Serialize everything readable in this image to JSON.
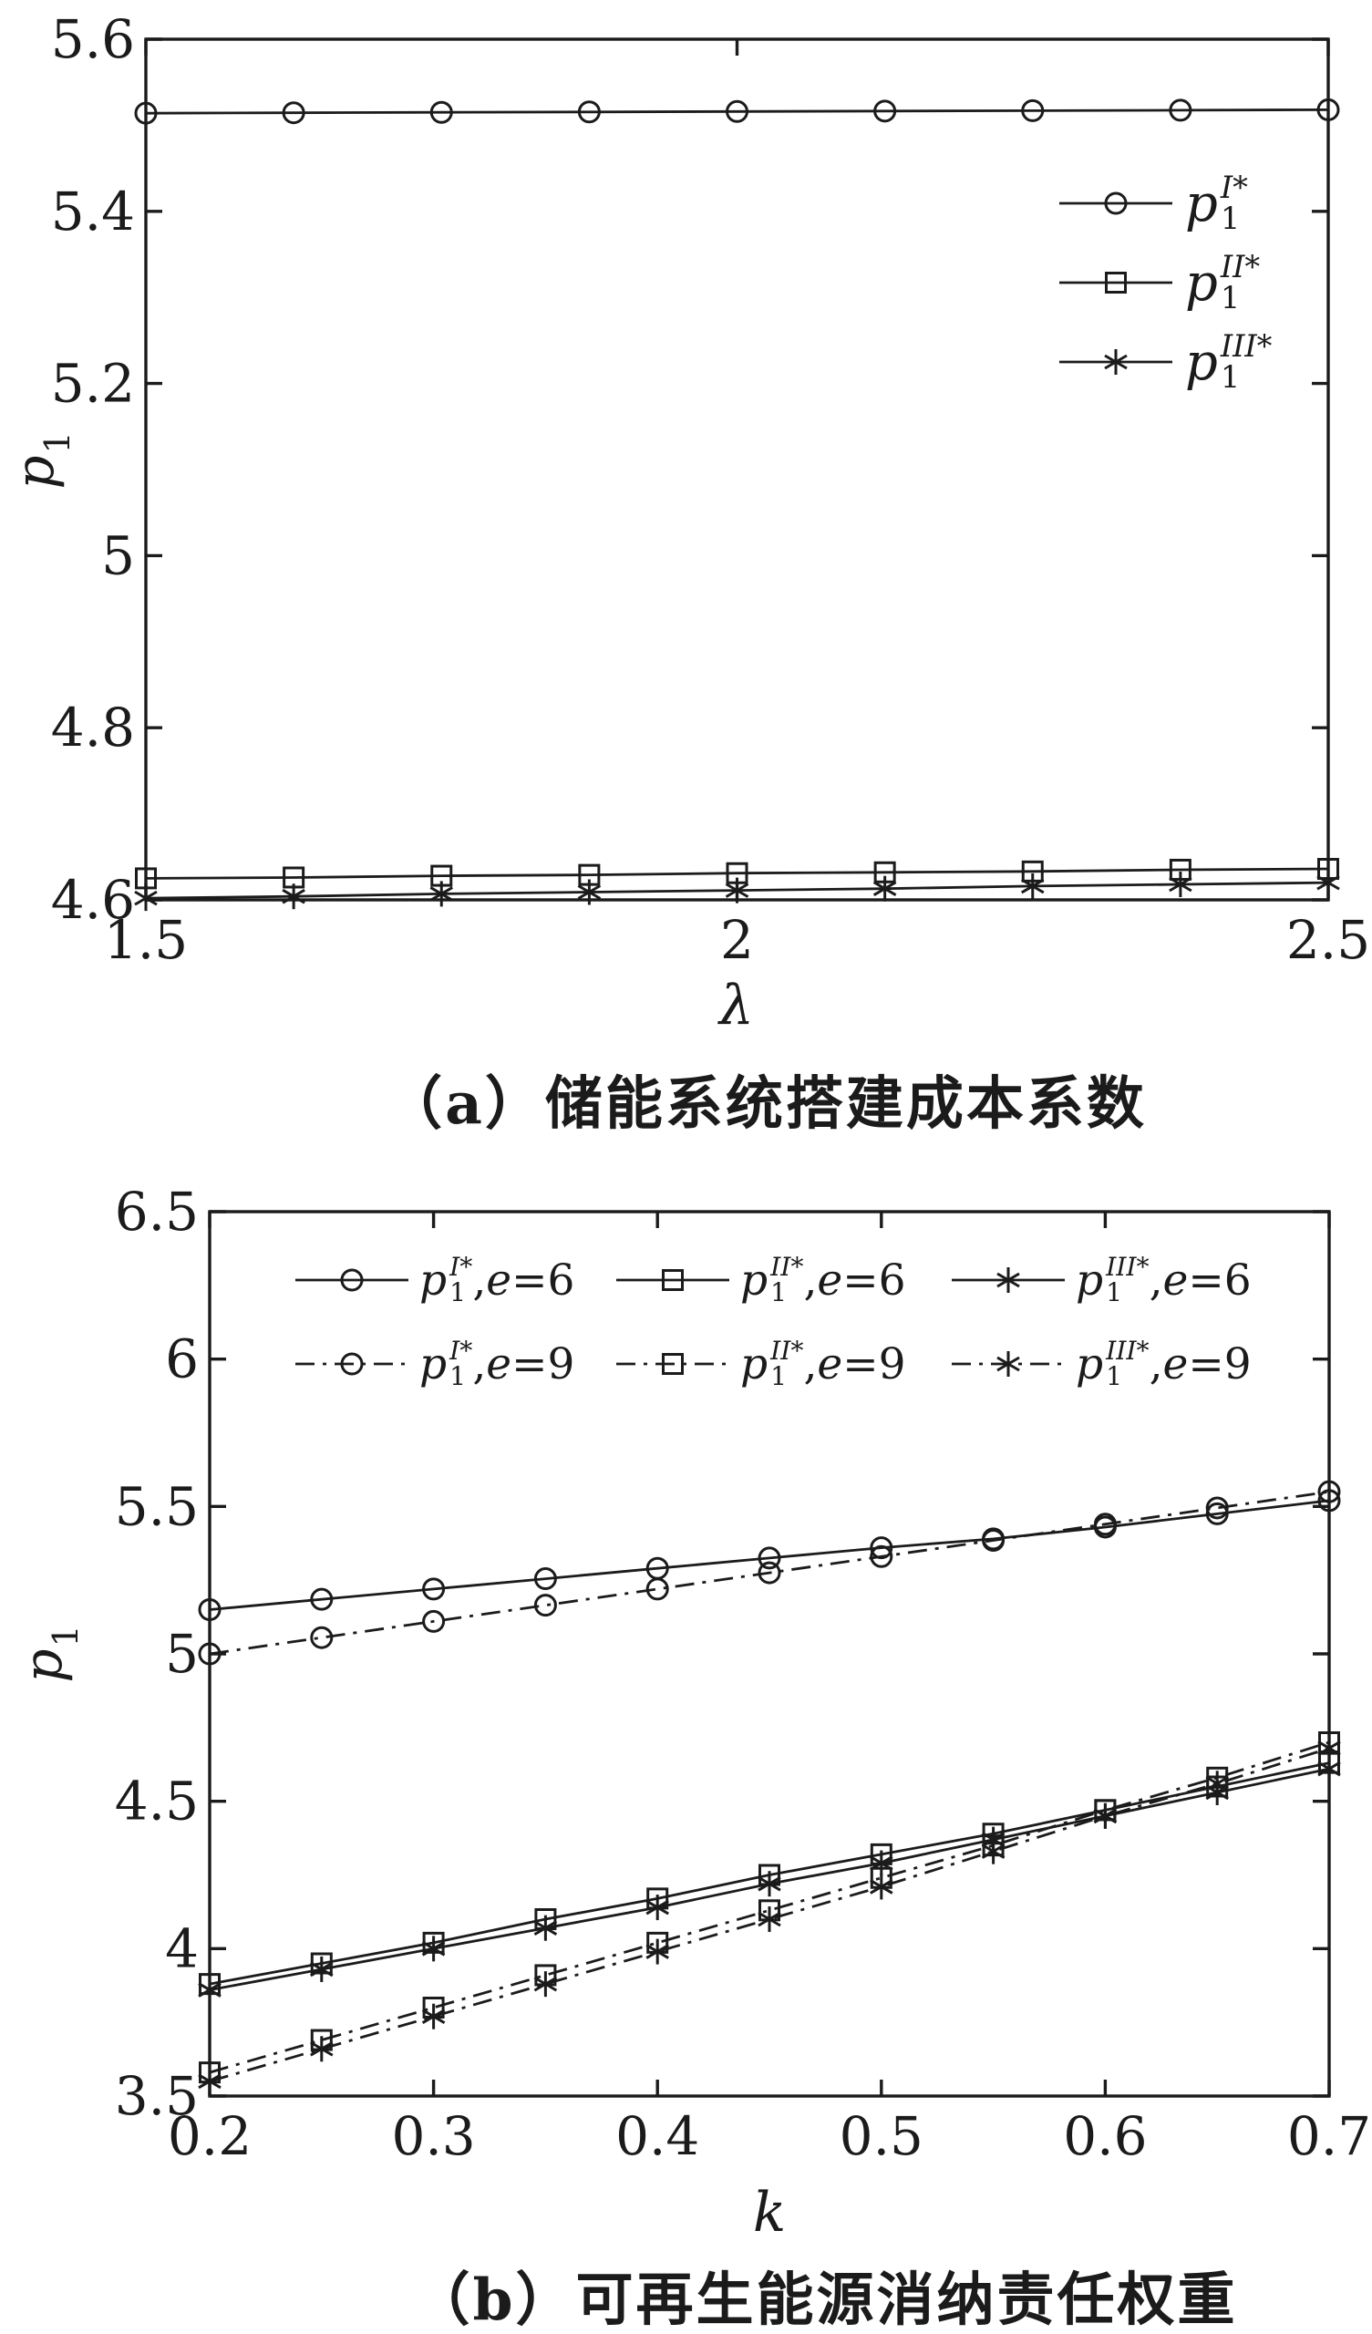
{
  "colors": {
    "ink": "#1b1b1b",
    "background": "#ffffff"
  },
  "chart_data": [
    {
      "id": "a",
      "type": "line",
      "title": "（a）储能系统搭建成本系数",
      "xlabel": "λ",
      "ylabel_base": "p",
      "ylabel_sub": "1",
      "xlim": [
        1.5,
        2.5
      ],
      "ylim": [
        4.6,
        5.6
      ],
      "grid": false,
      "legend_position": "inside upper right",
      "x_ticks": [
        {
          "v": 1.5,
          "label": "1.5"
        },
        {
          "v": 2,
          "label": "2"
        },
        {
          "v": 2.5,
          "label": "2.5"
        }
      ],
      "y_ticks": [
        {
          "v": 4.6,
          "label": "4.6"
        },
        {
          "v": 4.8,
          "label": "4.8"
        },
        {
          "v": 5,
          "label": "5"
        },
        {
          "v": 5.2,
          "label": "5.2"
        },
        {
          "v": 5.4,
          "label": "5.4"
        },
        {
          "v": 5.6,
          "label": "5.6"
        }
      ],
      "x": [
        1.5,
        1.625,
        1.75,
        1.875,
        2,
        2.125,
        2.25,
        2.375,
        2.5
      ],
      "series": [
        {
          "name": "p1-I-star",
          "marker": "circle",
          "line_style": "solid",
          "legend": {
            "base": "p",
            "sup": "I*",
            "sub": "1"
          },
          "values": [
            5.514,
            5.5145,
            5.515,
            5.5155,
            5.516,
            5.5165,
            5.517,
            5.5175,
            5.518
          ]
        },
        {
          "name": "p1-II-star",
          "marker": "square",
          "line_style": "solid",
          "legend": {
            "base": "p",
            "sup": "II*",
            "sub": "1"
          },
          "values": [
            4.625,
            4.626,
            4.628,
            4.629,
            4.631,
            4.632,
            4.633,
            4.635,
            4.636
          ]
        },
        {
          "name": "p1-III-star",
          "marker": "asterisk",
          "line_style": "solid",
          "legend": {
            "base": "p",
            "sup": "III*",
            "sub": "1"
          },
          "values": [
            4.602,
            4.604,
            4.607,
            4.609,
            4.611,
            4.613,
            4.616,
            4.618,
            4.62
          ]
        }
      ]
    },
    {
      "id": "b",
      "type": "line",
      "title": "（b）可再生能源消纳责任权重",
      "xlabel": "k",
      "ylabel_base": "p",
      "ylabel_sub": "1",
      "xlim": [
        0.2,
        0.7
      ],
      "ylim": [
        3.5,
        6.5
      ],
      "grid": false,
      "legend_position": "inside upper area, two rows",
      "x_ticks": [
        {
          "v": 0.2,
          "label": "0.2"
        },
        {
          "v": 0.3,
          "label": "0.3"
        },
        {
          "v": 0.4,
          "label": "0.4"
        },
        {
          "v": 0.5,
          "label": "0.5"
        },
        {
          "v": 0.6,
          "label": "0.6"
        },
        {
          "v": 0.7,
          "label": "0.7"
        }
      ],
      "y_ticks": [
        {
          "v": 3.5,
          "label": "3.5"
        },
        {
          "v": 4,
          "label": "4"
        },
        {
          "v": 4.5,
          "label": "4.5"
        },
        {
          "v": 5,
          "label": "5"
        },
        {
          "v": 5.5,
          "label": "5.5"
        },
        {
          "v": 6,
          "label": "6"
        },
        {
          "v": 6.5,
          "label": "6.5"
        }
      ],
      "x": [
        0.2,
        0.25,
        0.3,
        0.35,
        0.4,
        0.45,
        0.5,
        0.55,
        0.6,
        0.65,
        0.7
      ],
      "series": [
        {
          "name": "p1-I-star-e6",
          "marker": "circle",
          "line_style": "solid",
          "legend": {
            "base": "p",
            "sup": "I*",
            "sub": "1",
            "comma": ",",
            "var": "e",
            "val": "=6"
          },
          "values": [
            5.15,
            5.185,
            5.22,
            5.255,
            5.29,
            5.325,
            5.36,
            5.39,
            5.43,
            5.475,
            5.52
          ]
        },
        {
          "name": "p1-II-star-e6",
          "marker": "square",
          "line_style": "solid",
          "legend": {
            "base": "p",
            "sup": "II*",
            "sub": "1",
            "comma": ",",
            "var": "e",
            "val": "=6"
          },
          "values": [
            3.88,
            3.95,
            4.02,
            4.1,
            4.17,
            4.25,
            4.32,
            4.39,
            4.47,
            4.55,
            4.63
          ]
        },
        {
          "name": "p1-III-star-e6",
          "marker": "asterisk",
          "line_style": "solid",
          "legend": {
            "base": "p",
            "sup": "III*",
            "sub": "1",
            "comma": ",",
            "var": "e",
            "val": "=6"
          },
          "values": [
            3.86,
            3.93,
            4.0,
            4.07,
            4.14,
            4.22,
            4.29,
            4.37,
            4.45,
            4.53,
            4.61
          ]
        },
        {
          "name": "p1-I-star-e9",
          "marker": "circle",
          "line_style": "dashdot",
          "legend": {
            "base": "p",
            "sup": "I*",
            "sub": "1",
            "comma": ",",
            "var": "e",
            "val": "=9"
          },
          "values": [
            5.0,
            5.055,
            5.11,
            5.165,
            5.22,
            5.275,
            5.33,
            5.385,
            5.44,
            5.495,
            5.55
          ]
        },
        {
          "name": "p1-II-star-e9",
          "marker": "square",
          "line_style": "dashdot",
          "legend": {
            "base": "p",
            "sup": "II*",
            "sub": "1",
            "comma": ",",
            "var": "e",
            "val": "=9"
          },
          "values": [
            3.58,
            3.69,
            3.8,
            3.91,
            4.02,
            4.13,
            4.24,
            4.35,
            4.47,
            4.58,
            4.7
          ]
        },
        {
          "name": "p1-III-star-e9",
          "marker": "asterisk",
          "line_style": "dashdot",
          "legend": {
            "base": "p",
            "sup": "III*",
            "sub": "1",
            "comma": ",",
            "var": "e",
            "val": "=9"
          },
          "values": [
            3.55,
            3.66,
            3.77,
            3.88,
            3.99,
            4.1,
            4.21,
            4.33,
            4.45,
            4.56,
            4.68
          ]
        }
      ]
    }
  ]
}
